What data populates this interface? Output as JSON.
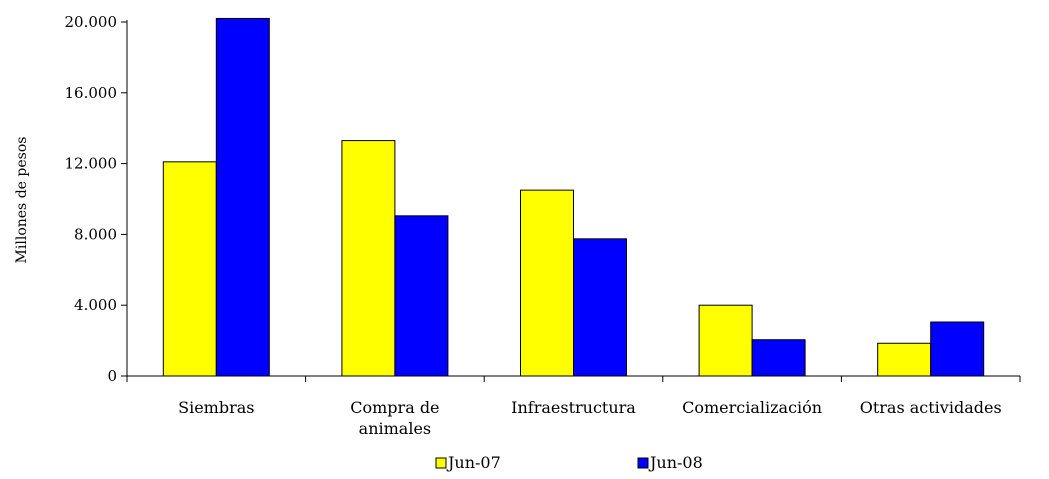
{
  "chart_data": {
    "type": "bar",
    "title": "",
    "xlabel": "",
    "ylabel": "Millones de pesos",
    "categories": [
      [
        "Siembras"
      ],
      [
        "Compra de",
        "animales"
      ],
      [
        "Infraestructura"
      ],
      [
        "Comercialización"
      ],
      [
        "Otras actividades"
      ]
    ],
    "series": [
      {
        "name": "Jun-07",
        "color": "#ffff00",
        "values": [
          12100,
          13300,
          10500,
          4000,
          1850
        ]
      },
      {
        "name": "Jun-08",
        "color": "#0000ff",
        "values": [
          20200,
          9050,
          7750,
          2050,
          3050
        ]
      }
    ],
    "ylim": [
      0,
      20000
    ],
    "yticks": [
      0,
      4000,
      8000,
      12000,
      16000,
      20000
    ],
    "ytick_labels": [
      "0",
      "4.000",
      "8.000",
      "12.000",
      "16.000",
      "20.000"
    ],
    "grid": false,
    "legend_position": "bottom"
  }
}
